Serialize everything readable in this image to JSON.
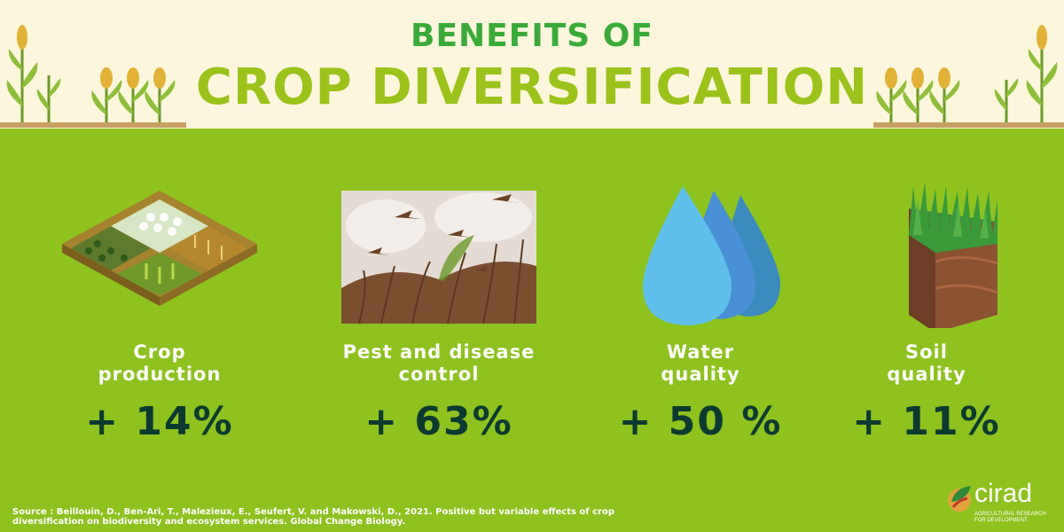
{
  "header": {
    "title_top": "BENEFITS OF",
    "title_main": "CROP DIVERSIFICATION"
  },
  "benefits": [
    {
      "label_1": "Crop",
      "label_2": "production",
      "value": "+ 14%",
      "icon": "farm-fields-icon"
    },
    {
      "label_1": "Pest and disease",
      "label_2": "control",
      "value": "+ 63%",
      "icon": "locust-swarm-icon"
    },
    {
      "label_1": "Water",
      "label_2": "quality",
      "value": "+ 50 %",
      "icon": "water-drops-icon"
    },
    {
      "label_1": "Soil",
      "label_2": "quality",
      "value": "+ 11%",
      "icon": "soil-block-icon"
    }
  ],
  "source": {
    "line_1": "Source : Beillouin, D., Ben-Ari, T., Malezieux, E., Seufert, V. and Makowski, D., 2021. Positive but variable effects of crop",
    "line_2": "diversification on biodiversity and ecosystem services. Global Change Biology."
  },
  "logo": {
    "word": "cirad",
    "tagline_1": "AGRICULTURAL RESEARCH",
    "tagline_2": "FOR DEVELOPMENT"
  },
  "colors": {
    "header_bg": "#fcf6dc",
    "main_bg": "#8ec21f",
    "title_top": "#3aab3a",
    "title_main": "#9cc21c",
    "value_text": "#0b3b30",
    "label_text": "#ffffff"
  }
}
